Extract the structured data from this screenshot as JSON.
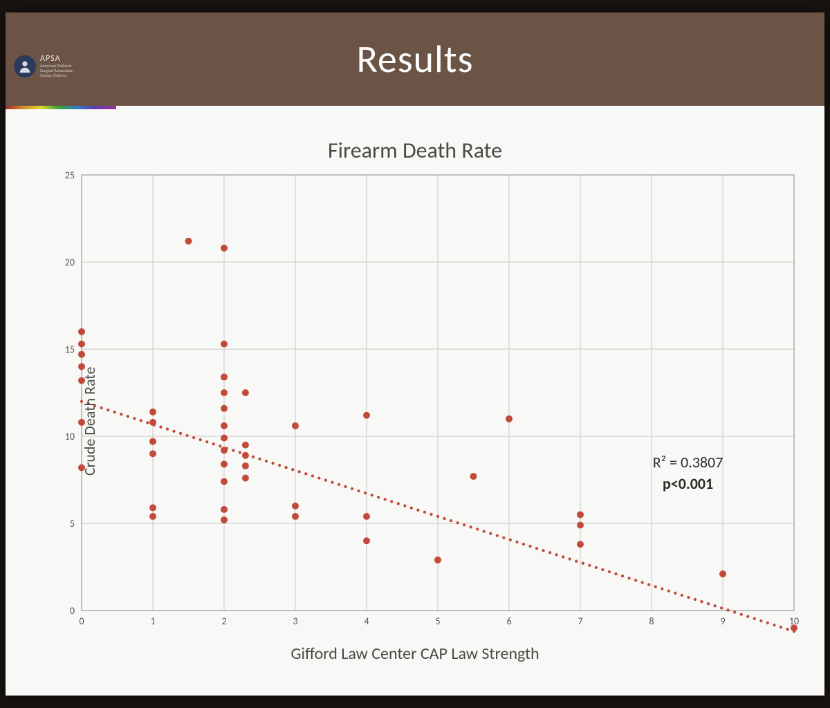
{
  "header": {
    "title": "Results",
    "logo_acronym": "APSA",
    "logo_sub1": "American Pediatric",
    "logo_sub2": "Surgical Association",
    "logo_sub3": "Saving Lifetimes"
  },
  "chart": {
    "type": "scatter",
    "title": "Firearm Death Rate",
    "xlabel": "Gifford Law Center CAP Law Strength",
    "ylabel": "Crude Death Rate",
    "xlim": [
      0,
      10
    ],
    "ylim": [
      0,
      25
    ],
    "xtick_step": 1,
    "ytick_step": 5,
    "background_color": "#f8f8f6",
    "grid_color": "#c8c8c4",
    "axis_color": "#888884",
    "marker_color": "#c24a3a",
    "marker_radius": 5,
    "tick_fontsize": 14,
    "title_fontsize": 32,
    "label_fontsize": 22,
    "points": [
      [
        0,
        8.2
      ],
      [
        0,
        10.8
      ],
      [
        0,
        13.2
      ],
      [
        0,
        14.0
      ],
      [
        0,
        14.7
      ],
      [
        0,
        15.3
      ],
      [
        0,
        16.0
      ],
      [
        1,
        5.4
      ],
      [
        1,
        5.9
      ],
      [
        1,
        9.0
      ],
      [
        1,
        9.7
      ],
      [
        1,
        10.8
      ],
      [
        1,
        11.4
      ],
      [
        1.5,
        21.2
      ],
      [
        2,
        5.2
      ],
      [
        2,
        5.8
      ],
      [
        2,
        7.4
      ],
      [
        2,
        8.4
      ],
      [
        2,
        9.2
      ],
      [
        2,
        9.9
      ],
      [
        2,
        10.6
      ],
      [
        2,
        11.6
      ],
      [
        2,
        12.5
      ],
      [
        2,
        13.4
      ],
      [
        2,
        15.3
      ],
      [
        2,
        20.8
      ],
      [
        2.3,
        7.6
      ],
      [
        2.3,
        8.3
      ],
      [
        2.3,
        8.9
      ],
      [
        2.3,
        9.5
      ],
      [
        2.3,
        12.5
      ],
      [
        3,
        5.4
      ],
      [
        3,
        6.0
      ],
      [
        3,
        10.6
      ],
      [
        4,
        4.0
      ],
      [
        4,
        5.4
      ],
      [
        4,
        11.2
      ],
      [
        5,
        2.9
      ],
      [
        5.5,
        7.7
      ],
      [
        6,
        11.0
      ],
      [
        7,
        3.8
      ],
      [
        7,
        4.9
      ],
      [
        7,
        5.5
      ],
      [
        9,
        2.1
      ],
      [
        10,
        -1.0
      ]
    ],
    "trend": {
      "style": "dotted",
      "color": "#c24a3a",
      "width": 3,
      "dot_spacing": 10,
      "y_at_x0": 12.0,
      "y_at_x10": -1.2
    },
    "annotation": {
      "r2_text": "R² = 0.3807",
      "p_text": "p<0.001",
      "fontsize": 22,
      "pos_xy": [
        8.6,
        7.5
      ]
    }
  }
}
